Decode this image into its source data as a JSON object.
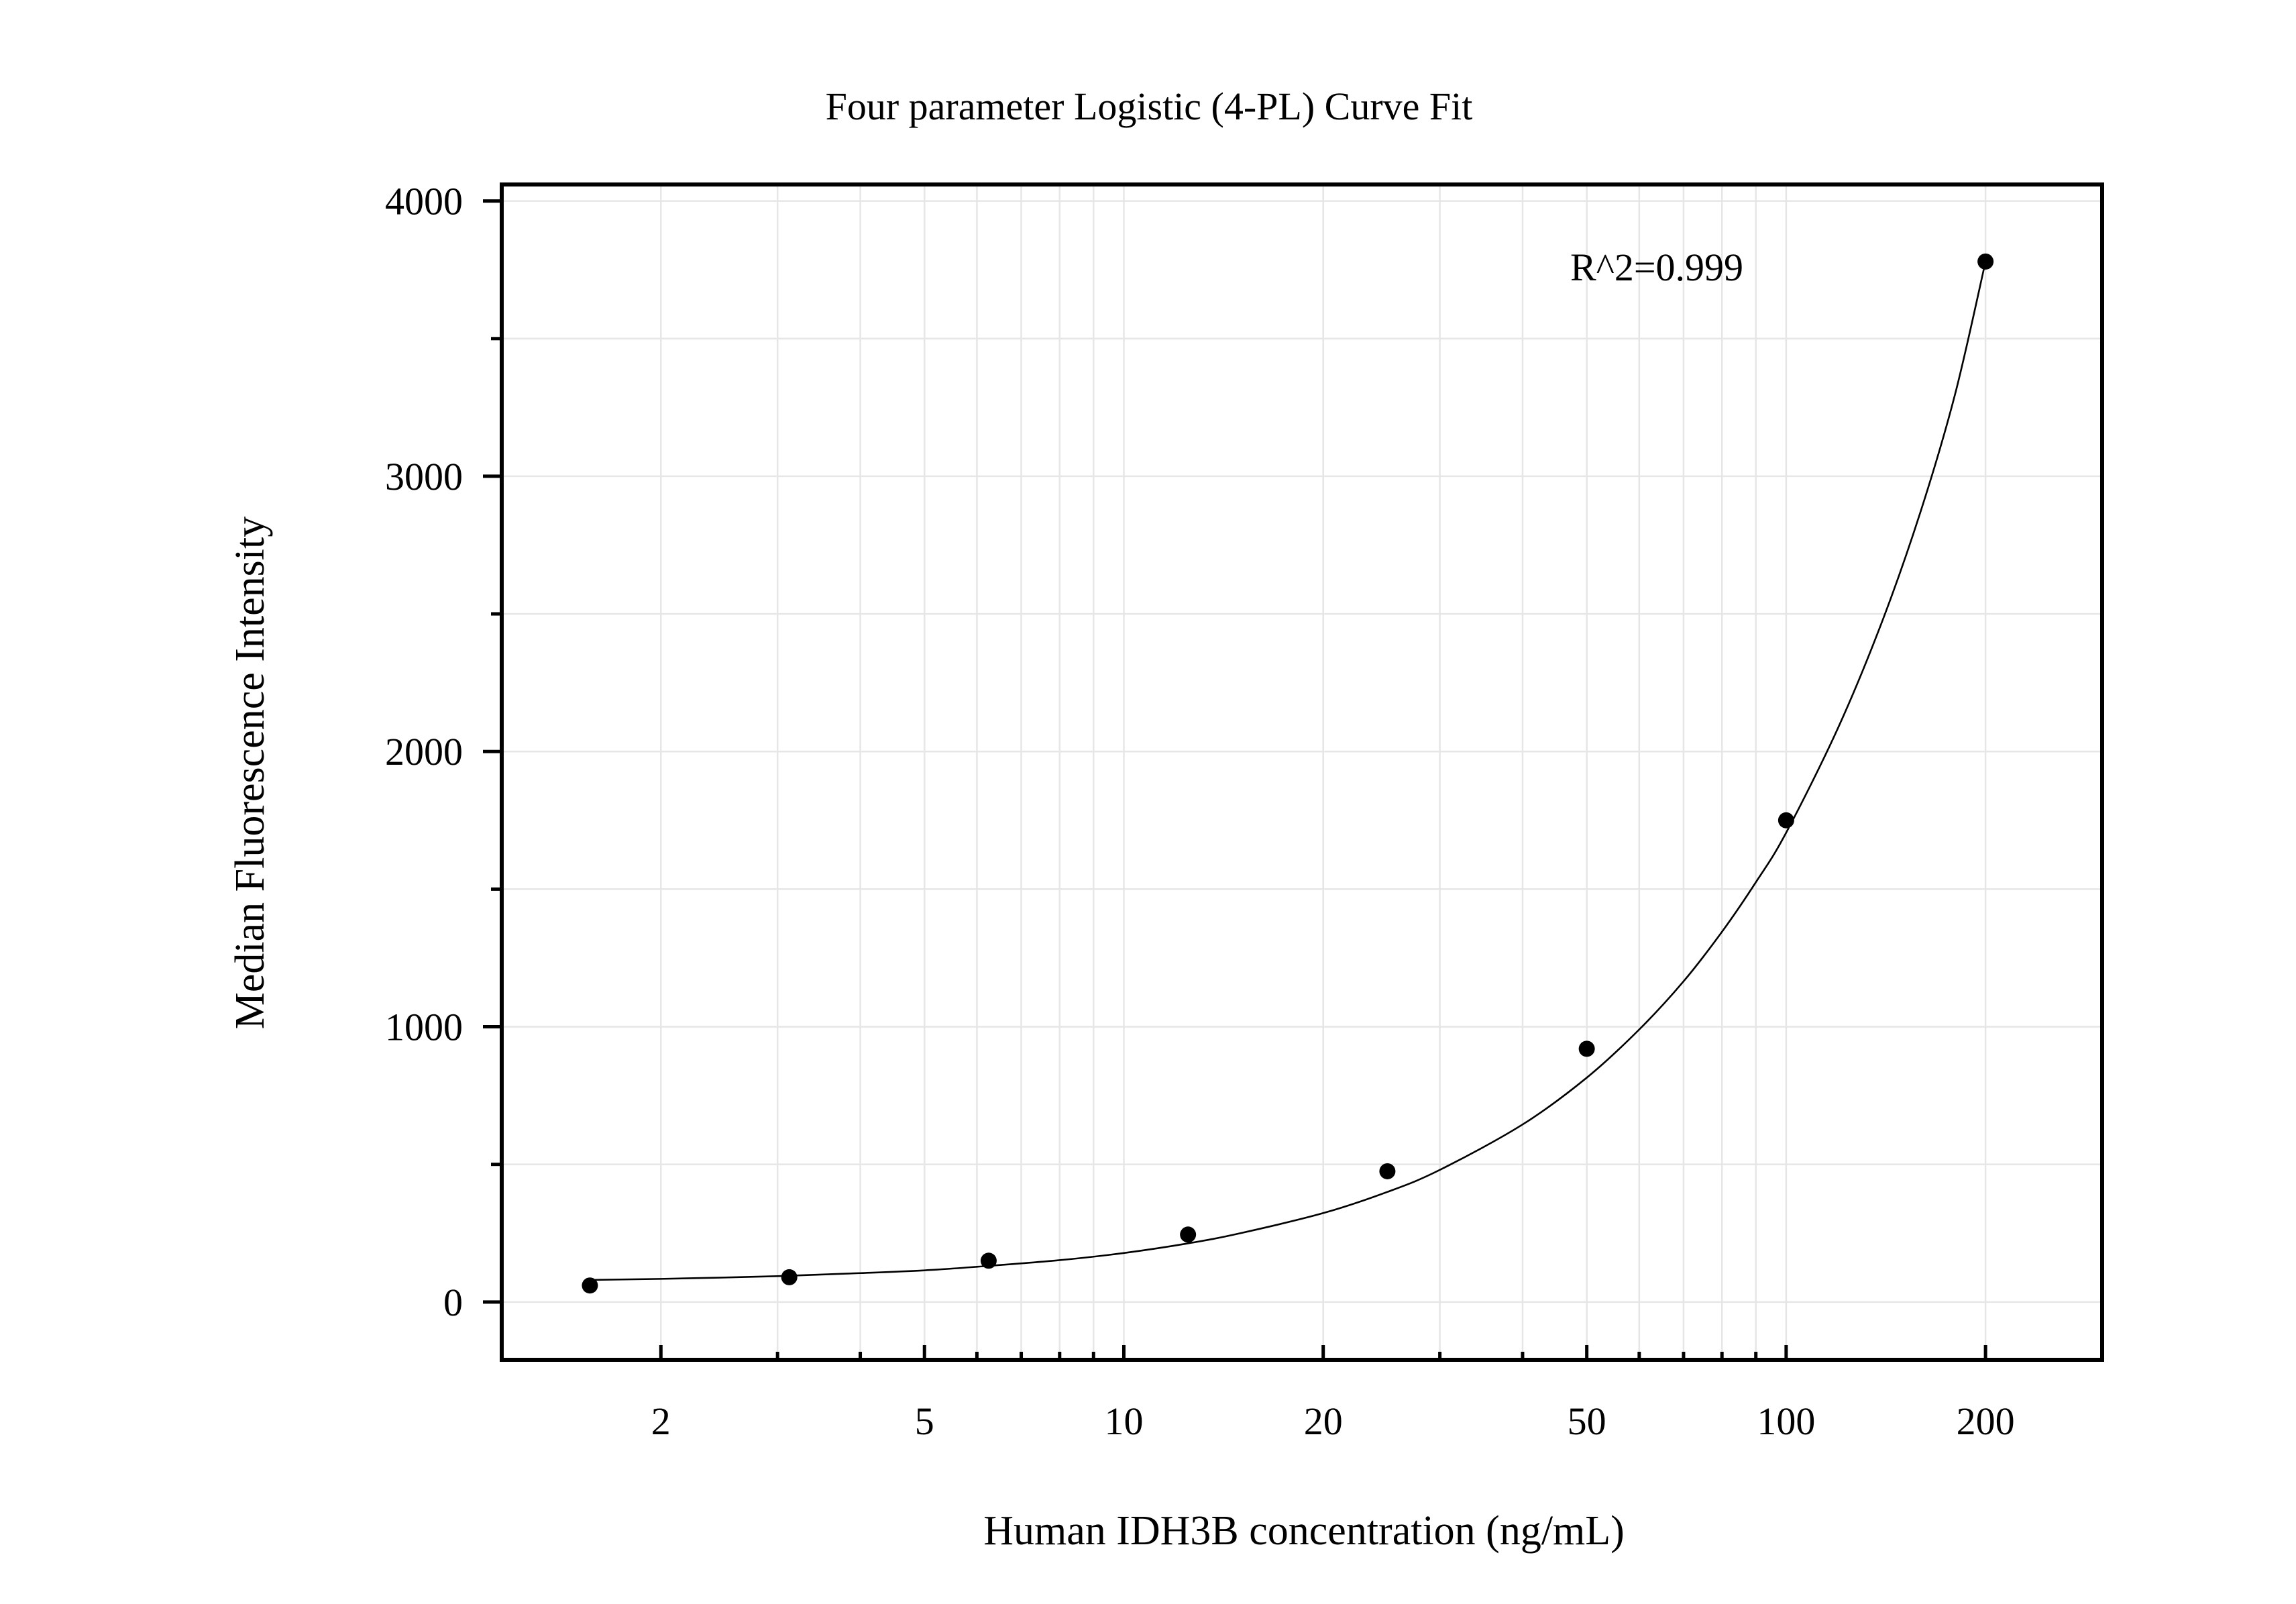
{
  "chart_data": {
    "type": "scatter",
    "title": "Four parameter Logistic (4-PL) Curve Fit",
    "xlabel": "Human IDH3B concentration (ng/mL)",
    "ylabel": "Median Fluorescence Intensity",
    "x_scale": "log",
    "xlim": [
      1.15,
      300
    ],
    "ylim": [
      -210,
      4060
    ],
    "x_ticks": [
      2,
      5,
      10,
      20,
      50,
      100,
      200
    ],
    "x_tick_labels": [
      "2",
      "5",
      "10",
      "20",
      "50",
      "100",
      "200"
    ],
    "y_ticks": [
      0,
      1000,
      2000,
      3000,
      4000
    ],
    "y_tick_labels": [
      "0",
      "1000",
      "2000",
      "3000",
      "4000"
    ],
    "y_minor_ticks": [
      500,
      1500,
      2500,
      3500
    ],
    "grid": true,
    "annotation": "R^2=0.999",
    "series": [
      {
        "x": [
          1.5625,
          3.125,
          6.25,
          12.5,
          25,
          50,
          100,
          200
        ],
        "y": [
          60,
          90,
          150,
          245,
          475,
          920,
          1750,
          3780
        ]
      }
    ],
    "fit": {
      "model": "4-PL",
      "x_range": [
        1.5625,
        200
      ],
      "x": [
        1.5625,
        2,
        3,
        4,
        5,
        6,
        8,
        10,
        12.5,
        15,
        20,
        25,
        30,
        40,
        50,
        60,
        70,
        80,
        90,
        100,
        120,
        140,
        160,
        180,
        200
      ],
      "y": [
        80,
        84,
        94,
        105,
        115,
        128,
        152,
        178,
        213,
        250,
        323,
        400,
        480,
        645,
        815,
        990,
        1165,
        1345,
        1525,
        1705,
        2090,
        2480,
        2880,
        3300,
        3780
      ]
    }
  }
}
